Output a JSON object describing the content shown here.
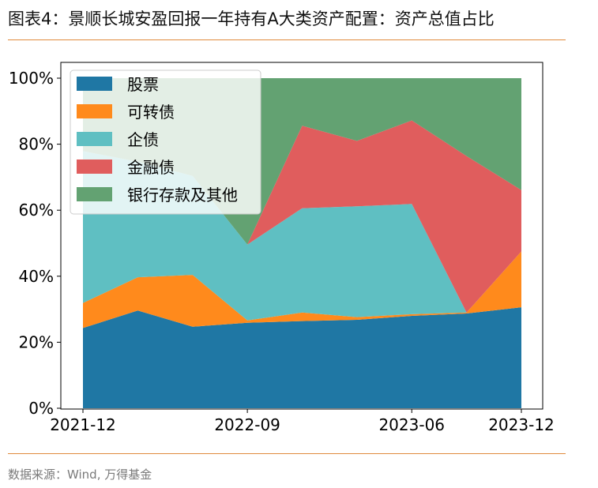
{
  "title": "图表4：景顺长城安盈回报一年持有A大类资产配置：资产总值占比",
  "source": "数据来源：Wind, 万得基金",
  "chart_data": {
    "type": "area",
    "stacked": true,
    "x": [
      "2021-12",
      "2022-03",
      "2022-06",
      "2022-09",
      "2022-12",
      "2023-03",
      "2023-06",
      "2023-09",
      "2023-12"
    ],
    "xticks": [
      "2021-12",
      "2022-09",
      "2023-06",
      "2023-12"
    ],
    "yticks": [
      "0%",
      "20%",
      "40%",
      "60%",
      "80%",
      "100%"
    ],
    "ylim": [
      0,
      100
    ],
    "series": [
      {
        "name": "股票",
        "color": "#1f77a4",
        "values": [
          24.3,
          29.6,
          24.7,
          25.9,
          26.4,
          26.8,
          28.0,
          28.7,
          30.6
        ]
      },
      {
        "name": "可转债",
        "color": "#ff8a1c",
        "values": [
          7.6,
          10.1,
          15.7,
          0.7,
          2.6,
          0.8,
          0.5,
          0.3,
          16.9
        ]
      },
      {
        "name": "企债",
        "color": "#5fbfc2",
        "values": [
          46.0,
          35.0,
          30.0,
          23.0,
          31.6,
          33.6,
          33.4,
          0.0,
          0.0
        ]
      },
      {
        "name": "金融债",
        "color": "#e05d5d",
        "values": [
          0.0,
          0.0,
          0.0,
          0.0,
          25.0,
          19.8,
          25.3,
          47.4,
          18.6
        ]
      },
      {
        "name": "银行存款及其他",
        "color": "#63a272",
        "values": [
          22.1,
          25.3,
          29.6,
          50.4,
          14.4,
          19.0,
          12.8,
          23.6,
          33.9
        ]
      }
    ],
    "legend_position": "top-left",
    "grid": false
  }
}
